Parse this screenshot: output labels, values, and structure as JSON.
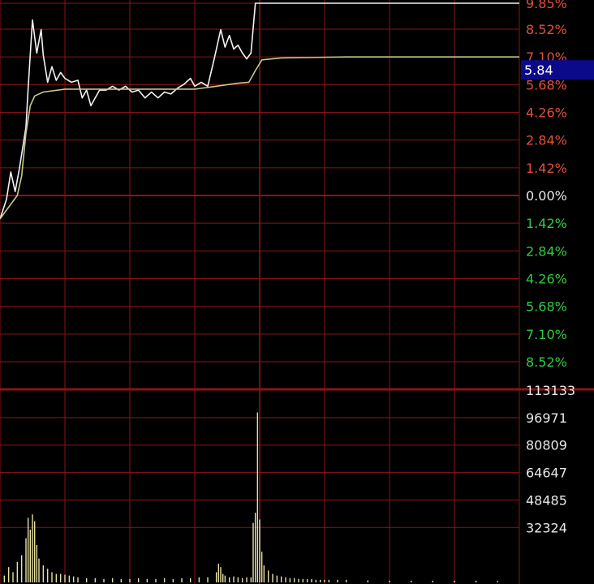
{
  "price_marker": "5.84",
  "colors": {
    "background": "#000000",
    "grid": "#8b1414",
    "axis_red": "#c0392b",
    "up_label": "#e0503c",
    "down_label": "#2ecc40",
    "zero_label": "#e8e8e8",
    "volume_label": "#e8e8e8",
    "price_line": "#f2f2f2",
    "avg_line": "#c8c88c",
    "volume_bar": "#e8e2a0",
    "marker_bg": "#0a0a8a",
    "marker_text": "#ffffff"
  },
  "chart_data": [
    {
      "type": "line",
      "ylim": [
        -9.85,
        9.85
      ],
      "yticks": [
        {
          "value": 9.85,
          "label": "9.85%",
          "side": "up"
        },
        {
          "value": 8.52,
          "label": "8.52%",
          "side": "up"
        },
        {
          "value": 7.1,
          "label": "7.10%",
          "side": "up"
        },
        {
          "value": 5.68,
          "label": "5.68%",
          "side": "up"
        },
        {
          "value": 4.26,
          "label": "4.26%",
          "side": "up"
        },
        {
          "value": 2.84,
          "label": "2.84%",
          "side": "up"
        },
        {
          "value": 1.42,
          "label": "1.42%",
          "side": "up"
        },
        {
          "value": 0.0,
          "label": "0.00%",
          "side": "zero"
        },
        {
          "value": -1.42,
          "label": "1.42%",
          "side": "down"
        },
        {
          "value": -2.84,
          "label": "2.84%",
          "side": "down"
        },
        {
          "value": -4.26,
          "label": "4.26%",
          "side": "down"
        },
        {
          "value": -5.68,
          "label": "5.68%",
          "side": "down"
        },
        {
          "value": -7.1,
          "label": "7.10%",
          "side": "down"
        },
        {
          "value": -8.52,
          "label": "8.52%",
          "side": "down"
        }
      ],
      "x_range": [
        0,
        240
      ],
      "series": [
        {
          "points": [
            [
              0,
              -1.2
            ],
            [
              3,
              -0.2
            ],
            [
              5,
              1.2
            ],
            [
              7,
              0.2
            ],
            [
              9,
              1.4
            ],
            [
              12,
              3.5
            ],
            [
              13,
              5.5
            ],
            [
              15,
              9.0
            ],
            [
              17,
              7.3
            ],
            [
              19,
              8.5
            ],
            [
              20,
              7.2
            ],
            [
              22,
              5.8
            ],
            [
              24,
              6.6
            ],
            [
              26,
              5.9
            ],
            [
              28,
              6.3
            ],
            [
              30,
              6.0
            ],
            [
              33,
              5.8
            ],
            [
              36,
              5.9
            ],
            [
              38,
              5.0
            ],
            [
              40,
              5.4
            ],
            [
              42,
              4.6
            ],
            [
              44,
              5.0
            ],
            [
              46,
              5.4
            ],
            [
              49,
              5.4
            ],
            [
              52,
              5.6
            ],
            [
              55,
              5.4
            ],
            [
              58,
              5.6
            ],
            [
              61,
              5.3
            ],
            [
              64,
              5.4
            ],
            [
              67,
              5.0
            ],
            [
              70,
              5.3
            ],
            [
              73,
              5.0
            ],
            [
              76,
              5.3
            ],
            [
              79,
              5.2
            ],
            [
              82,
              5.5
            ],
            [
              85,
              5.7
            ],
            [
              88,
              6.0
            ],
            [
              90,
              5.6
            ],
            [
              93,
              5.8
            ],
            [
              96,
              5.6
            ],
            [
              99,
              7.0
            ],
            [
              102,
              8.5
            ],
            [
              104,
              7.6
            ],
            [
              106,
              8.2
            ],
            [
              108,
              7.5
            ],
            [
              110,
              7.7
            ],
            [
              112,
              7.3
            ],
            [
              114,
              7.0
            ],
            [
              116,
              7.3
            ],
            [
              118,
              9.85
            ],
            [
              150,
              9.85
            ],
            [
              240,
              9.85
            ]
          ]
        },
        {
          "points": [
            [
              0,
              -1.2
            ],
            [
              4,
              -0.6
            ],
            [
              8,
              0.0
            ],
            [
              10,
              1.0
            ],
            [
              12,
              3.2
            ],
            [
              14,
              4.6
            ],
            [
              16,
              5.1
            ],
            [
              20,
              5.3
            ],
            [
              30,
              5.45
            ],
            [
              60,
              5.45
            ],
            [
              90,
              5.45
            ],
            [
              100,
              5.6
            ],
            [
              110,
              5.75
            ],
            [
              115,
              5.8
            ],
            [
              118,
              6.4
            ],
            [
              121,
              6.95
            ],
            [
              130,
              7.05
            ],
            [
              160,
              7.1
            ],
            [
              200,
              7.1
            ],
            [
              240,
              7.1
            ]
          ]
        }
      ]
    },
    {
      "type": "bar",
      "ylim": [
        0,
        113133
      ],
      "yticks": [
        {
          "value": 113133,
          "label": "113133"
        },
        {
          "value": 96971,
          "label": "96971"
        },
        {
          "value": 80809,
          "label": "80809"
        },
        {
          "value": 64647,
          "label": "64647"
        },
        {
          "value": 48485,
          "label": "48485"
        },
        {
          "value": 32324,
          "label": "32324"
        }
      ],
      "x_range": [
        0,
        240
      ],
      "x": [
        2,
        4,
        6,
        8,
        10,
        12,
        13,
        14,
        15,
        16,
        17,
        18,
        20,
        22,
        24,
        26,
        28,
        30,
        32,
        34,
        36,
        40,
        44,
        48,
        52,
        56,
        60,
        64,
        68,
        72,
        76,
        80,
        84,
        88,
        92,
        96,
        100,
        101,
        102,
        103,
        104,
        106,
        108,
        110,
        112,
        114,
        116,
        117,
        118,
        119,
        120,
        121,
        122,
        124,
        126,
        128,
        130,
        132,
        134,
        136,
        138,
        140,
        142,
        144,
        146,
        148,
        150,
        152,
        156,
        160,
        170,
        180,
        190,
        200,
        210,
        220,
        230
      ],
      "values": [
        4000,
        9000,
        6000,
        12000,
        16000,
        26000,
        38000,
        31000,
        40000,
        36000,
        22000,
        14000,
        10000,
        8000,
        6000,
        5000,
        5000,
        4500,
        4000,
        3500,
        3000,
        2500,
        2500,
        2000,
        2500,
        2000,
        2000,
        2500,
        2000,
        2000,
        2500,
        2000,
        2500,
        2500,
        3000,
        3000,
        6000,
        11000,
        9000,
        5000,
        4000,
        3000,
        3500,
        3000,
        2500,
        3000,
        3000,
        35000,
        41000,
        100000,
        37000,
        18000,
        10000,
        7000,
        5000,
        4000,
        3500,
        3000,
        2500,
        2500,
        2000,
        2000,
        2000,
        2000,
        1500,
        1500,
        1500,
        1500,
        1500,
        1500,
        1200,
        1000,
        1000,
        1000,
        1000,
        1000,
        800
      ]
    }
  ]
}
